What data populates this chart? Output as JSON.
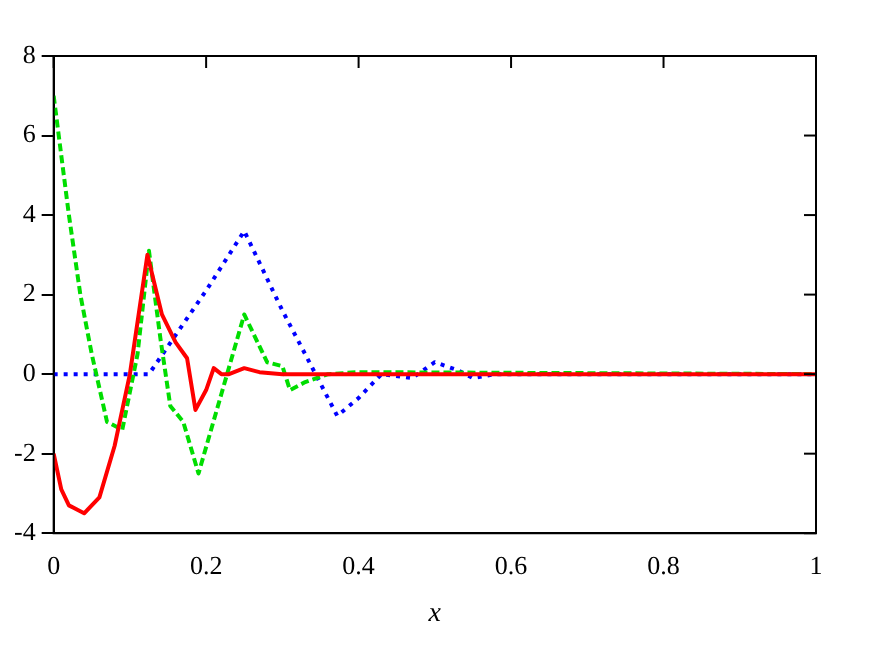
{
  "chart_data": {
    "type": "line",
    "xlabel": "x",
    "xlim": [
      0,
      1
    ],
    "xticks": [
      0,
      0.2,
      0.4,
      0.6,
      0.8,
      1
    ],
    "ylim": [
      -4,
      8
    ],
    "yticks": [
      -4,
      -2,
      0,
      2,
      4,
      6,
      8
    ],
    "grid": false,
    "legend": false,
    "marker": "none",
    "series": [
      {
        "color": "#ff0000",
        "line_style": "solid",
        "x": [
          0,
          0.01,
          0.02,
          0.04,
          0.06,
          0.08,
          0.1,
          0.123,
          0.142,
          0.16,
          0.175,
          0.186,
          0.2,
          0.21,
          0.22,
          0.23,
          0.25,
          0.27,
          0.3,
          0.35,
          0.4,
          1
        ],
        "values": [
          -2,
          -2.9,
          -3.3,
          -3.5,
          -3.1,
          -1.8,
          0,
          3,
          1.5,
          0.8,
          0.4,
          -0.9,
          -0.4,
          0.15,
          0,
          0,
          0.15,
          0.05,
          0,
          0,
          0,
          0
        ]
      },
      {
        "color": "#00dd00",
        "line_style": "dashed",
        "x": [
          0,
          0.01,
          0.02,
          0.035,
          0.05,
          0.07,
          0.09,
          0.11,
          0.125,
          0.14,
          0.153,
          0.17,
          0.19,
          0.22,
          0.25,
          0.28,
          0.3,
          0.31,
          0.33,
          0.36,
          0.4,
          1
        ],
        "values": [
          7,
          5.5,
          4,
          2,
          0.5,
          -1.2,
          -1.4,
          0.5,
          3.1,
          0.9,
          -0.8,
          -1.2,
          -2.5,
          -0.5,
          1.5,
          0.3,
          0.2,
          -0.4,
          -0.2,
          0,
          0.05,
          0
        ]
      },
      {
        "color": "#0000ff",
        "line_style": "dotted",
        "x": [
          0,
          0.125,
          0.15,
          0.2,
          0.25,
          0.3,
          0.33,
          0.372,
          0.4,
          0.43,
          0.47,
          0.5,
          0.53,
          0.55,
          0.58,
          1
        ],
        "values": [
          0,
          0,
          0.7,
          2.1,
          3.6,
          1.6,
          0.5,
          -1.05,
          -0.6,
          0,
          -0.1,
          0.3,
          0.1,
          -0.1,
          0,
          0
        ]
      }
    ]
  }
}
